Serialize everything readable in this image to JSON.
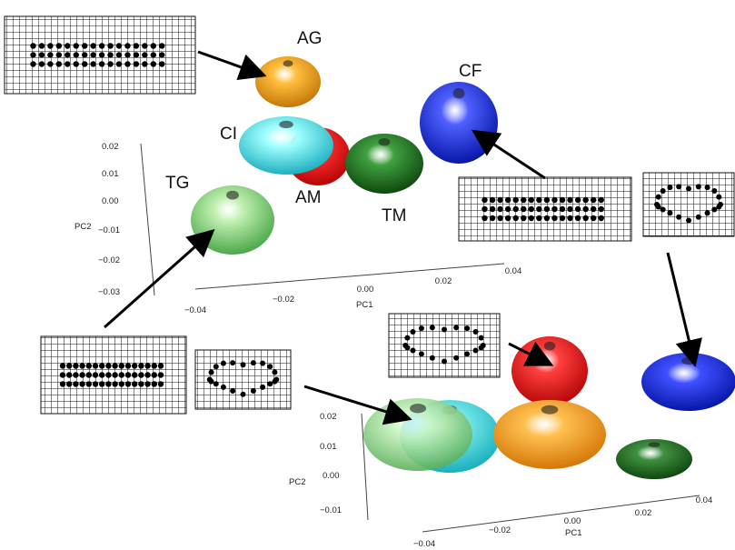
{
  "top_panel": {
    "group_labels": {
      "AG": "AG",
      "CI": "CI",
      "AM": "AM",
      "TM": "TM",
      "CF": "CF",
      "TG": "TG"
    },
    "y_axis": {
      "label": "PC2",
      "ticks": [
        "0.02",
        "0.01",
        "0.00",
        "−0.01",
        "−0.02",
        "−0.03"
      ]
    },
    "x_axis": {
      "label": "PC1",
      "ticks": [
        "−0.04",
        "−0.02",
        "0.00",
        "0.02",
        "0.04"
      ]
    }
  },
  "bottom_panel": {
    "y_axis": {
      "label": "PC2",
      "ticks": [
        "0.02",
        "0.01",
        "0.00",
        "−0.01"
      ]
    },
    "x_axis": {
      "label": "PC1",
      "ticks": [
        "−0.04",
        "−0.02",
        "0.00",
        "0.02",
        "0.04"
      ]
    }
  }
}
